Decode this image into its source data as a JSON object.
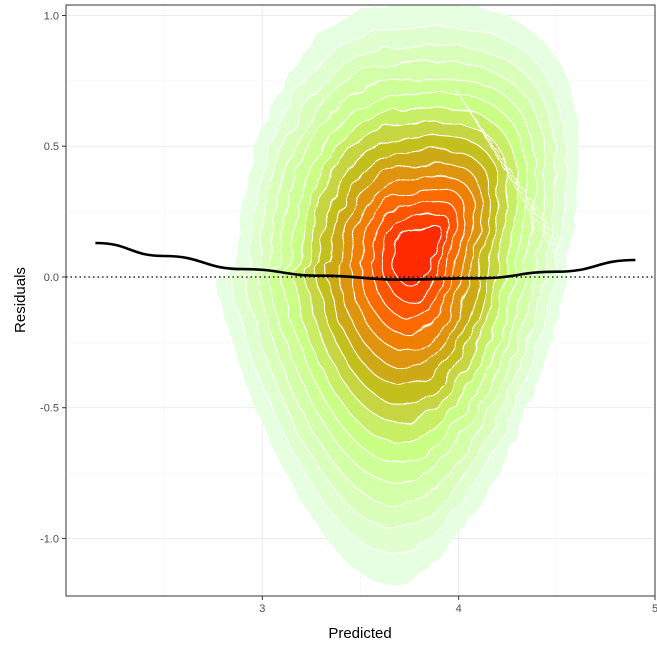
{
  "chart_data": {
    "type": "contour-density",
    "title": "",
    "xlabel": "Predicted",
    "ylabel": "Residuals",
    "xlim": [
      2.0,
      5.0
    ],
    "ylim": [
      -1.22,
      1.04
    ],
    "x_ticks": [
      {
        "value": 3,
        "label": "3"
      },
      {
        "value": 4,
        "label": "4"
      },
      {
        "value": 5,
        "label": "5"
      }
    ],
    "y_ticks": [
      {
        "value": 1.0,
        "label": "1.0"
      },
      {
        "value": 0.5,
        "label": "0.5"
      },
      {
        "value": 0.0,
        "label": "0.0"
      },
      {
        "value": -0.5,
        "label": "-0.5"
      },
      {
        "value": -1.0,
        "label": "-1.0"
      }
    ],
    "grid": true,
    "reference_line": {
      "y": 0,
      "style": "dotted"
    },
    "trend_line": {
      "x": [
        2.15,
        2.5,
        2.9,
        3.3,
        3.7,
        4.1,
        4.5,
        4.9
      ],
      "y": [
        0.13,
        0.08,
        0.03,
        0.005,
        -0.01,
        -0.005,
        0.02,
        0.065
      ]
    },
    "density": {
      "peak": {
        "x": 3.76,
        "y": 0.07
      },
      "levels": 16,
      "colors": {
        "low": "#e5ffe0",
        "mid": "#c8ff80",
        "olive": "#c2b916",
        "high": "#ff6a00",
        "peak": "#ff2a00"
      }
    }
  }
}
